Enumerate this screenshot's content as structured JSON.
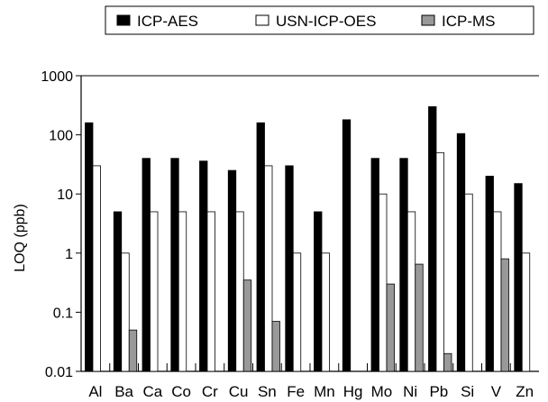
{
  "chart_data": {
    "type": "bar",
    "title": "",
    "xlabel": "",
    "ylabel": "LOQ (ppb)",
    "yscale": "log",
    "ylim": [
      0.01,
      1000
    ],
    "yticks": [
      "0.01",
      "0.1",
      "1",
      "10",
      "100",
      "1000"
    ],
    "grid": false,
    "legend_position": "top",
    "categories": [
      "Al",
      "Ba",
      "Ca",
      "Co",
      "Cr",
      "Cu",
      "Sn",
      "Fe",
      "Mn",
      "Hg",
      "Mo",
      "Ni",
      "Pb",
      "Si",
      "V",
      "Zn"
    ],
    "series": [
      {
        "name": "ICP-AES",
        "color": "#000000",
        "values": [
          160,
          5,
          40,
          40,
          36,
          25,
          160,
          30,
          5,
          180,
          40,
          40,
          300,
          105,
          20,
          15
        ]
      },
      {
        "name": "USN-ICP-OES",
        "color": "#ffffff",
        "values": [
          30,
          1,
          5,
          5,
          5,
          5,
          30,
          1,
          1,
          null,
          10,
          5,
          50,
          10,
          5,
          1
        ]
      },
      {
        "name": "ICP-MS",
        "color": "#999999",
        "values": [
          null,
          0.05,
          null,
          null,
          null,
          0.35,
          0.07,
          null,
          null,
          null,
          0.3,
          0.65,
          0.02,
          null,
          0.8,
          null
        ]
      }
    ]
  }
}
